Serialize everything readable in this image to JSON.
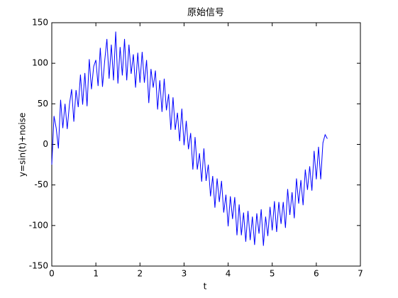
{
  "chart_data": {
    "type": "line",
    "title": "原始信号",
    "xlabel": "t",
    "ylabel": "y=sin(t)+noise",
    "x": [
      0,
      0.05,
      0.1,
      0.15,
      0.2,
      0.25,
      0.3,
      0.35,
      0.4,
      0.45,
      0.5,
      0.55,
      0.6,
      0.65,
      0.7,
      0.75,
      0.8,
      0.85,
      0.9,
      0.95,
      1.0,
      1.05,
      1.1,
      1.15,
      1.2,
      1.25,
      1.3,
      1.35,
      1.4,
      1.45,
      1.5,
      1.55,
      1.6,
      1.65,
      1.7,
      1.75,
      1.8,
      1.85,
      1.9,
      1.95,
      2.0,
      2.05,
      2.1,
      2.15,
      2.2,
      2.25,
      2.3,
      2.35,
      2.4,
      2.45,
      2.5,
      2.55,
      2.6,
      2.65,
      2.7,
      2.75,
      2.8,
      2.85,
      2.9,
      2.95,
      3.0,
      3.05,
      3.1,
      3.15,
      3.2,
      3.25,
      3.3,
      3.35,
      3.4,
      3.45,
      3.5,
      3.55,
      3.6,
      3.65,
      3.7,
      3.75,
      3.8,
      3.85,
      3.9,
      3.95,
      4.0,
      4.05,
      4.1,
      4.15,
      4.2,
      4.25,
      4.3,
      4.35,
      4.4,
      4.45,
      4.5,
      4.55,
      4.6,
      4.65,
      4.7,
      4.75,
      4.8,
      4.85,
      4.9,
      4.95,
      5.0,
      5.05,
      5.1,
      5.15,
      5.2,
      5.25,
      5.3,
      5.35,
      5.4,
      5.45,
      5.5,
      5.55,
      5.6,
      5.65,
      5.7,
      5.75,
      5.8,
      5.85,
      5.9,
      5.95,
      6.0,
      6.05,
      6.1,
      6.15,
      6.2,
      6.25
    ],
    "series": [
      {
        "color": "#0000ff",
        "values": [
          -25,
          35,
          20,
          -5,
          55,
          20,
          50,
          19,
          49,
          68,
          28,
          67,
          46,
          86,
          49,
          88,
          47,
          105,
          68,
          96,
          104,
          72,
          119,
          71,
          103,
          130,
          81,
          123,
          79,
          139,
          75,
          120,
          85,
          130,
          79,
          123,
          87,
          111,
          70,
          113,
          76,
          114,
          76,
          104,
          51,
          93,
          70,
          91,
          43,
          79,
          40,
          81,
          42,
          62,
          18,
          58,
          18,
          39,
          4,
          44,
          -1,
          29,
          -6,
          14,
          -31,
          9,
          -31,
          -11,
          -46,
          -5,
          -45,
          -25,
          -64,
          -39,
          -78,
          -42,
          -71,
          -45,
          -84,
          -62,
          -101,
          -64,
          -92,
          -65,
          -112,
          -74,
          -112,
          -84,
          -120,
          -82,
          -118,
          -89,
          -124,
          -85,
          -110,
          -80,
          -125,
          -89,
          -113,
          -77,
          -106,
          -70,
          -108,
          -71,
          -98,
          -71,
          -103,
          -55,
          -87,
          -59,
          -91,
          -42,
          -73,
          -44,
          -75,
          -31,
          -56,
          -27,
          -57,
          -8,
          -43,
          -3,
          -43,
          2,
          12,
          7
        ]
      }
    ],
    "xlim": [
      0,
      7
    ],
    "xticks": [
      0,
      1,
      2,
      3,
      4,
      5,
      6,
      7
    ],
    "ylim": [
      -150,
      150
    ],
    "yticks": [
      -150,
      -100,
      -50,
      0,
      50,
      100,
      150
    ]
  }
}
